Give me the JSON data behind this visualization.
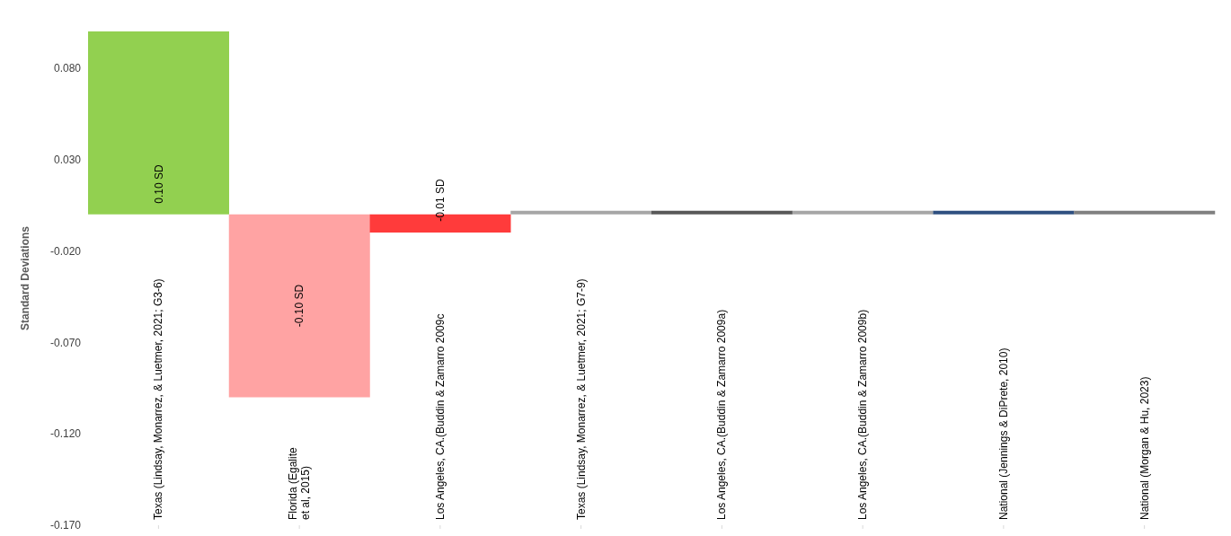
{
  "chart_data": {
    "type": "bar",
    "ylabel": "Standard Deviations",
    "categories": [
      "Texas (Lindsay, Monarrez, & Luetmer, 2021; G3-6)",
      "Florida  (Egalite et al, 2015)",
      "Los Angeles, CA.(Buddin & Zamarro 2009c",
      "Texas (Lindsay, Monarrez, & Luetmer, 2021; G7-9)",
      "Los Angeles, CA.(Buddin & Zamarro 2009a)",
      "Los Angeles, CA.(Buddin & Zamarro 2009b)",
      "National  (Jennings & DiPrete, 2010)",
      "National  (Morgan & Hu, 2023)"
    ],
    "values": [
      0.1,
      -0.1,
      -0.01,
      0.002,
      0.002,
      0.002,
      0.002,
      0.002
    ],
    "colors": [
      "#92d050",
      "#ffa3a3",
      "#ff3b3b",
      "#a6a6a6",
      "#595959",
      "#a6a6a6",
      "#2f5080",
      "#808080"
    ],
    "value_labels": [
      "0.10 SD",
      "-0.10 SD",
      "-0.01 SD",
      null,
      null,
      null,
      null,
      null
    ],
    "ylim": [
      -0.17,
      0.1
    ],
    "yticks": [
      {
        "value": -0.17,
        "label": "-0.170"
      },
      {
        "value": -0.12,
        "label": "-0.120"
      },
      {
        "value": -0.07,
        "label": "-0.070"
      },
      {
        "value": -0.02,
        "label": "-0.020"
      },
      {
        "value": 0.03,
        "label": "0.030"
      },
      {
        "value": 0.08,
        "label": "0.080"
      }
    ],
    "grid": false,
    "legend": false
  }
}
